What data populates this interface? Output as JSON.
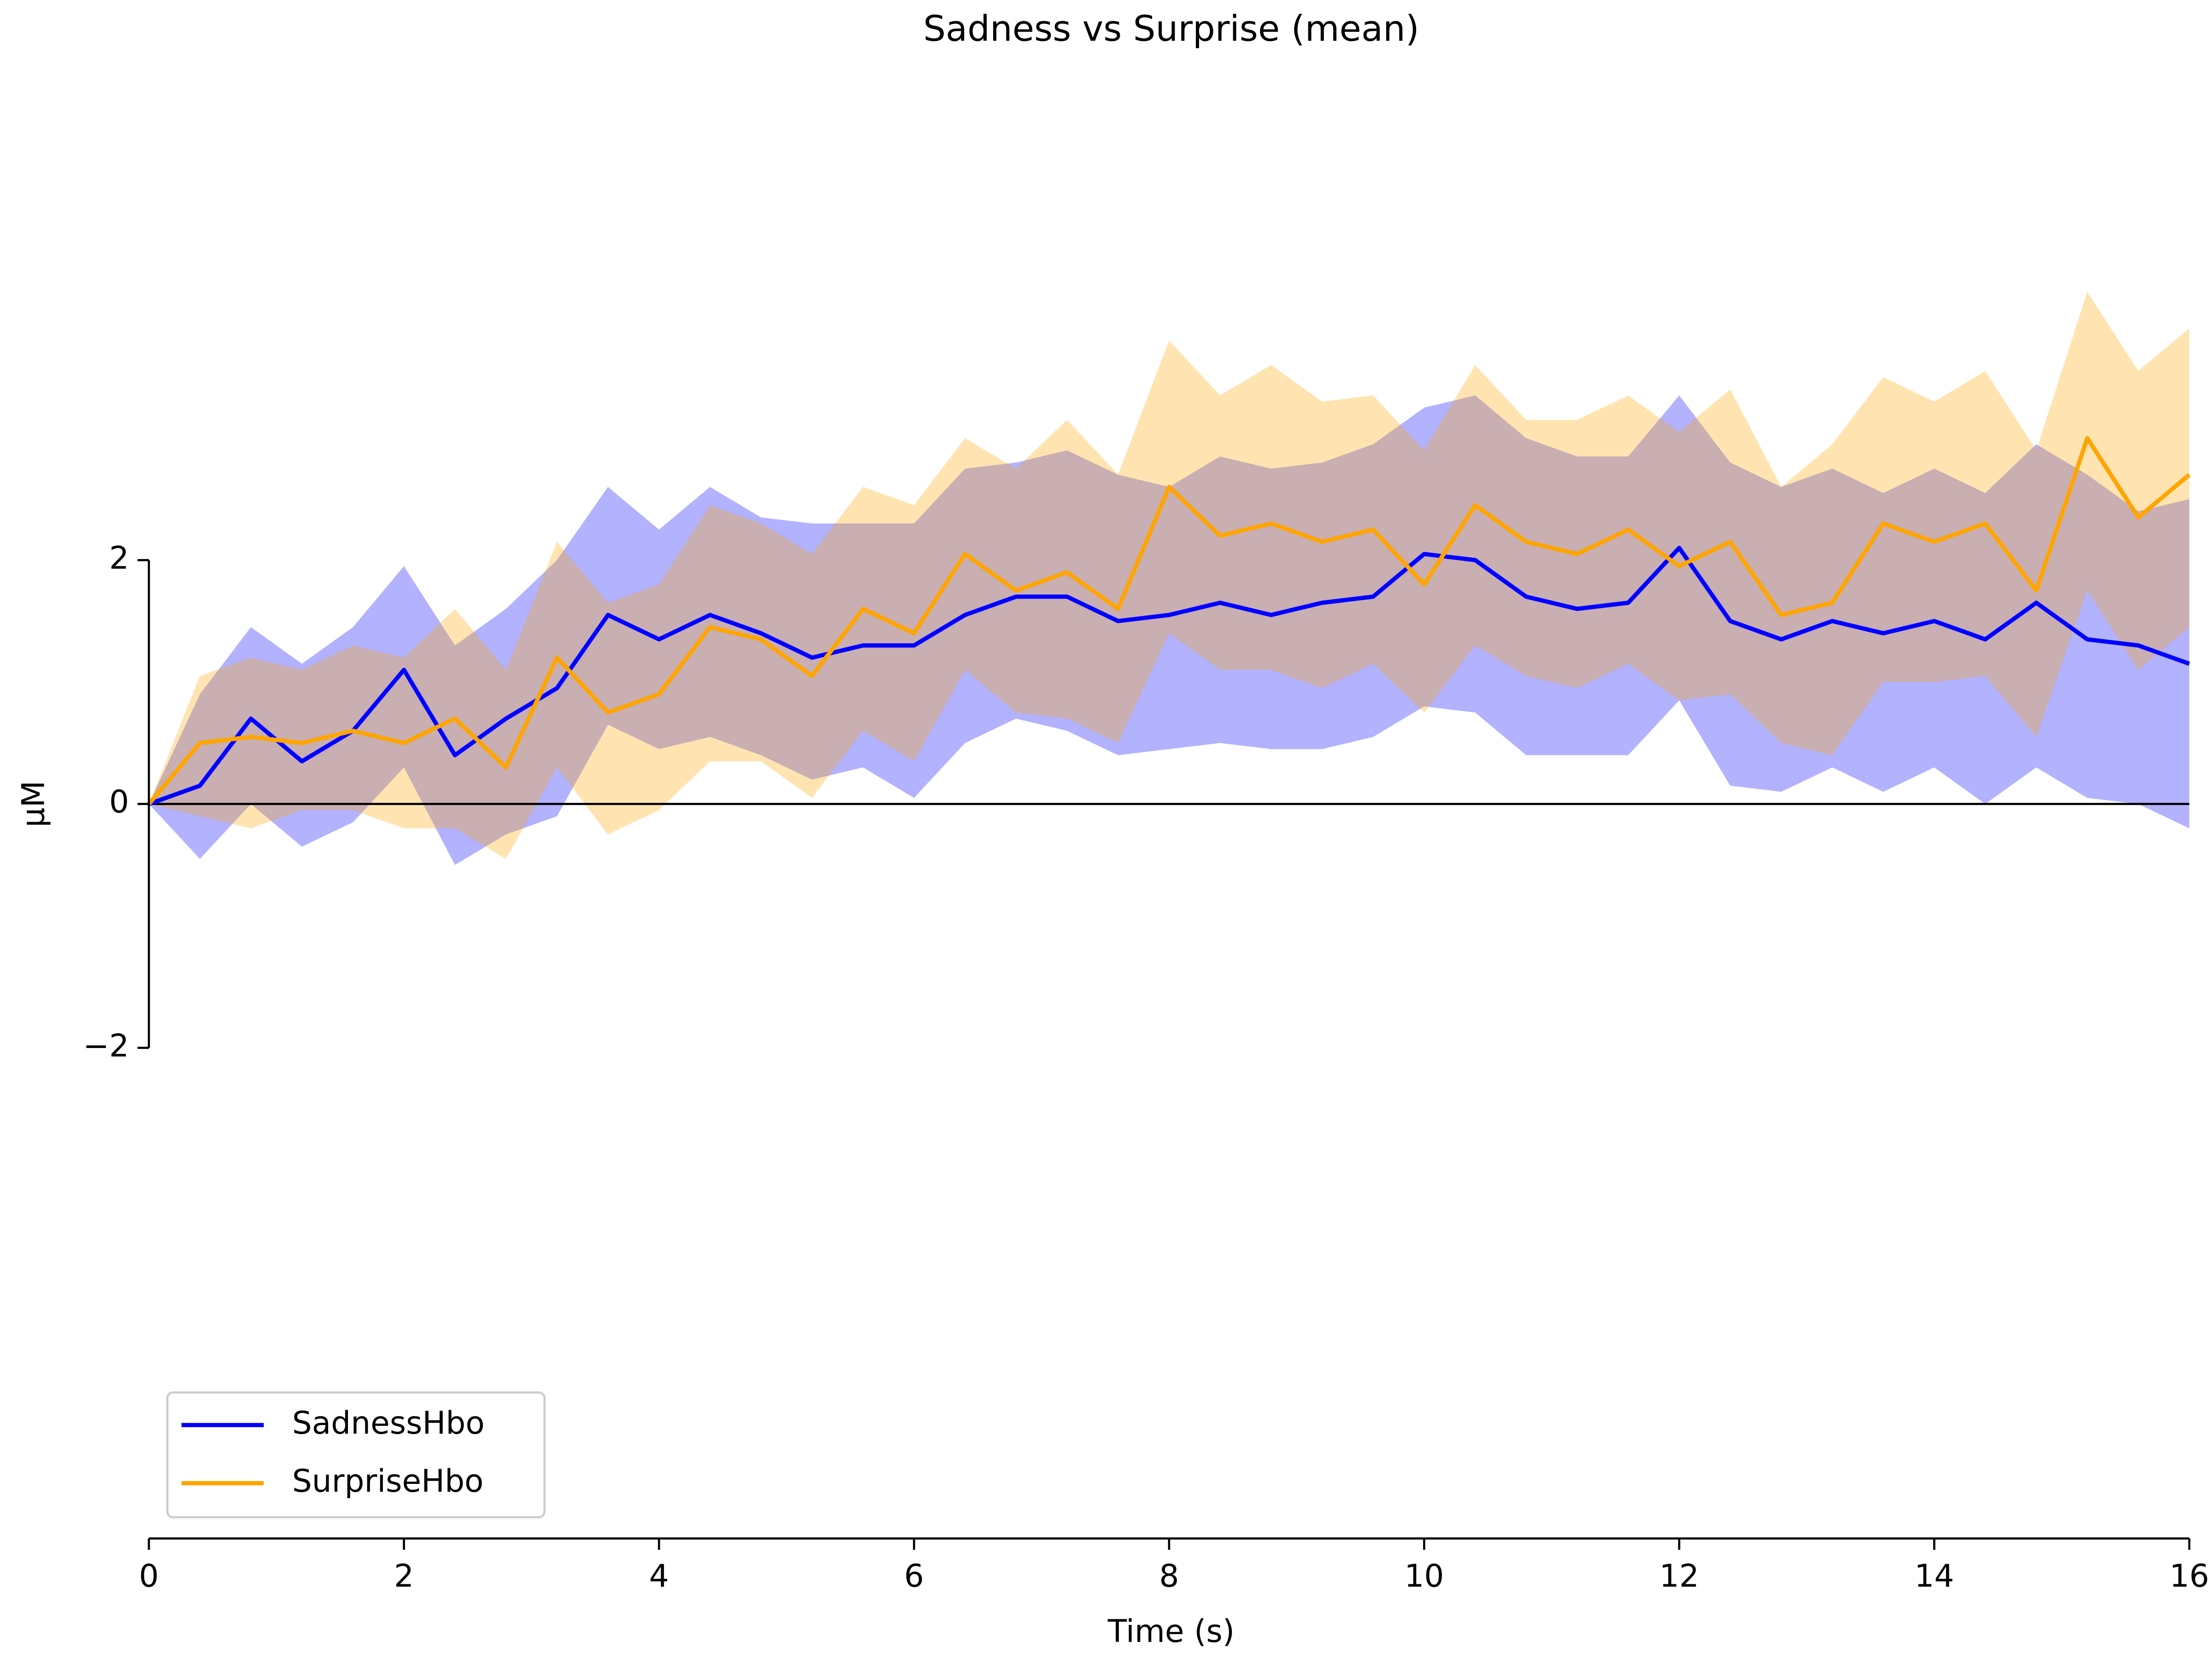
{
  "chart_data": {
    "type": "line",
    "title": "Sadness vs Surprise (mean)",
    "x_label": "Time (s)",
    "y_label": "μM",
    "x": [
      0,
      0.4,
      0.8,
      1.2,
      1.6,
      2.0,
      2.4,
      2.8,
      3.2,
      3.6,
      4.0,
      4.4,
      4.8,
      5.2,
      5.6,
      6.0,
      6.4,
      6.8,
      7.2,
      7.6,
      8.0,
      8.4,
      8.8,
      9.2,
      9.6,
      10.0,
      10.4,
      10.8,
      11.2,
      11.6,
      12.0,
      12.4,
      12.8,
      13.2,
      13.6,
      14.0,
      14.4,
      14.8,
      15.2,
      15.6,
      16.0
    ],
    "series": [
      {
        "name": "SadnessHbo",
        "color": "#0000ff",
        "values": [
          0,
          0.15,
          0.7,
          0.35,
          0.6,
          1.1,
          0.4,
          0.7,
          0.95,
          1.55,
          1.35,
          1.55,
          1.4,
          1.2,
          1.3,
          1.3,
          1.55,
          1.7,
          1.7,
          1.5,
          1.55,
          1.65,
          1.55,
          1.65,
          1.7,
          2.05,
          2.0,
          1.7,
          1.6,
          1.65,
          2.1,
          1.5,
          1.35,
          1.5,
          1.4,
          1.5,
          1.35,
          1.65,
          1.35,
          1.3,
          1.15
        ],
        "upper": [
          0,
          0.9,
          1.45,
          1.15,
          1.45,
          1.95,
          1.3,
          1.6,
          2.0,
          2.6,
          2.25,
          2.6,
          2.35,
          2.3,
          2.3,
          2.3,
          2.75,
          2.8,
          2.9,
          2.7,
          2.6,
          2.85,
          2.75,
          2.8,
          2.95,
          3.25,
          3.35,
          3.0,
          2.85,
          2.85,
          3.35,
          2.8,
          2.6,
          2.75,
          2.55,
          2.75,
          2.55,
          2.95,
          2.7,
          2.4,
          2.5
        ],
        "lower": [
          0,
          -0.45,
          0.0,
          -0.35,
          -0.15,
          0.3,
          -0.5,
          -0.25,
          -0.1,
          0.65,
          0.45,
          0.55,
          0.4,
          0.2,
          0.3,
          0.05,
          0.5,
          0.7,
          0.6,
          0.4,
          0.45,
          0.5,
          0.45,
          0.45,
          0.55,
          0.8,
          0.75,
          0.4,
          0.4,
          0.4,
          0.85,
          0.15,
          0.1,
          0.3,
          0.1,
          0.3,
          0.0,
          0.3,
          0.05,
          0.0,
          -0.2
        ]
      },
      {
        "name": "SurpriseHbo",
        "color": "#ffa500",
        "values": [
          0,
          0.5,
          0.55,
          0.5,
          0.6,
          0.5,
          0.7,
          0.3,
          1.2,
          0.75,
          0.9,
          1.45,
          1.35,
          1.05,
          1.6,
          1.4,
          2.05,
          1.75,
          1.9,
          1.6,
          2.6,
          2.2,
          2.3,
          2.15,
          2.25,
          1.8,
          2.45,
          2.15,
          2.05,
          2.25,
          1.95,
          2.15,
          1.55,
          1.65,
          2.3,
          2.15,
          2.3,
          1.75,
          3.0,
          2.35,
          2.7
        ],
        "upper": [
          0,
          1.05,
          1.2,
          1.1,
          1.3,
          1.2,
          1.6,
          1.1,
          2.15,
          1.65,
          1.8,
          2.45,
          2.3,
          2.05,
          2.6,
          2.45,
          3.0,
          2.75,
          3.15,
          2.7,
          3.8,
          3.35,
          3.6,
          3.3,
          3.35,
          2.9,
          3.6,
          3.15,
          3.15,
          3.35,
          3.05,
          3.4,
          2.6,
          2.95,
          3.5,
          3.3,
          3.55,
          2.9,
          4.2,
          3.55,
          3.9
        ],
        "lower": [
          0,
          -0.1,
          -0.2,
          -0.05,
          -0.05,
          -0.2,
          -0.2,
          -0.45,
          0.3,
          -0.25,
          -0.05,
          0.35,
          0.35,
          0.05,
          0.6,
          0.35,
          1.1,
          0.75,
          0.7,
          0.5,
          1.4,
          1.1,
          1.1,
          0.95,
          1.15,
          0.75,
          1.3,
          1.05,
          0.95,
          1.15,
          0.85,
          0.9,
          0.5,
          0.4,
          1.0,
          1.0,
          1.05,
          0.55,
          1.75,
          1.1,
          1.45
        ]
      }
    ],
    "xlim": [
      0,
      16
    ],
    "xticks": [
      0,
      2,
      4,
      6,
      8,
      10,
      12,
      14,
      16
    ],
    "ylim": [
      -6,
      6
    ],
    "yticks": [
      {
        "value": -2,
        "label": "−2"
      },
      0,
      2
    ],
    "hline": 0,
    "band_opacity": 0.3,
    "legend": "lower left",
    "grid": false
  }
}
